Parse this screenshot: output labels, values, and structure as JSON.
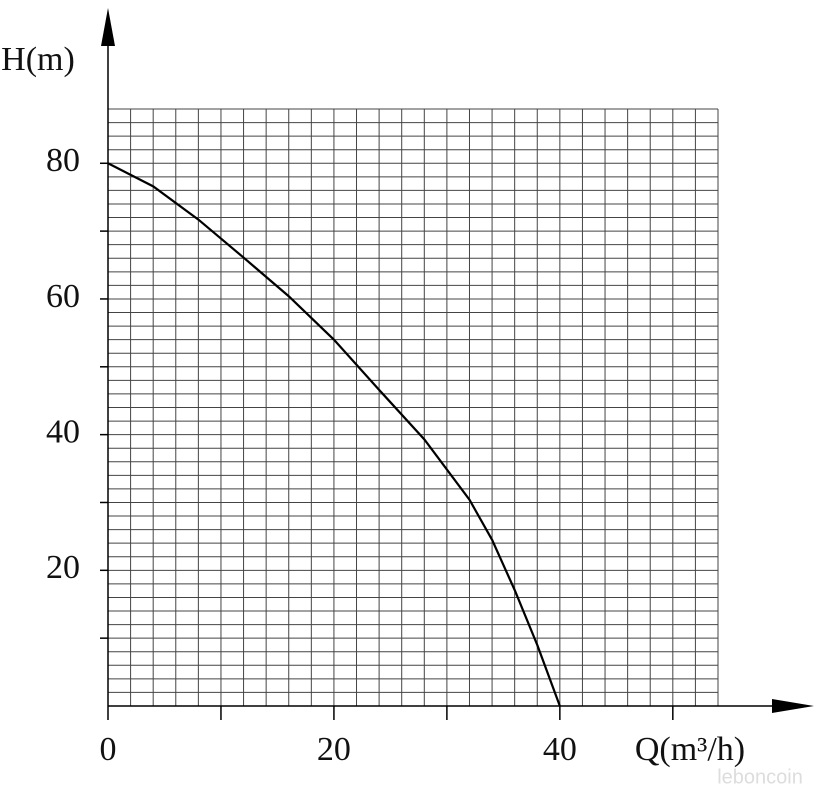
{
  "chart_data": {
    "type": "line",
    "y_label": "H(m)",
    "x_label": "Q(m³/h)",
    "watermark": "leboncoin",
    "x": [
      0,
      4,
      8,
      12,
      16,
      20,
      24,
      28,
      32,
      34,
      36,
      38,
      40
    ],
    "values": [
      80,
      76.6,
      71.7,
      66.1,
      60.4,
      54,
      46.6,
      39.3,
      30.4,
      24.5,
      17.1,
      9,
      0
    ],
    "color": "#000000",
    "xlim": [
      0,
      54
    ],
    "ylim": [
      0,
      88
    ],
    "xticks": [
      0,
      20,
      40
    ],
    "yticks": [
      20,
      40,
      60,
      80
    ],
    "x_minor_ticks": [
      10,
      30,
      50
    ],
    "y_minor_ticks": [
      10,
      30,
      50,
      70
    ],
    "x_grid": [
      2,
      4,
      6,
      8,
      10,
      12,
      14,
      16,
      18,
      20,
      22,
      24,
      26,
      28,
      30,
      32,
      34,
      36,
      38,
      40,
      42,
      44,
      46,
      48,
      50,
      52,
      54
    ],
    "y_grid": [
      2,
      4,
      6,
      8,
      10,
      12,
      14,
      16,
      18,
      20,
      22,
      24,
      26,
      28,
      30,
      32,
      34,
      36,
      38,
      40,
      42,
      44,
      46,
      48,
      50,
      52,
      54,
      56,
      58,
      60,
      62,
      64,
      66,
      68,
      70,
      72,
      74,
      76,
      78,
      80,
      82,
      84,
      86,
      88
    ],
    "grid": true
  }
}
